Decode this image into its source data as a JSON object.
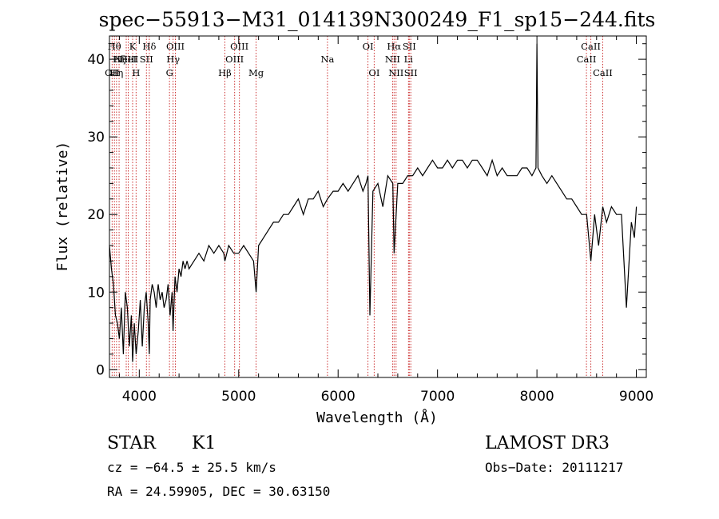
{
  "chart_data": {
    "type": "line",
    "title": "spec−55913−M31_014139N300249_F1_sp15−244.fits",
    "xlabel": "Wavelength (Å)",
    "ylabel": "Flux (relative)",
    "xlim": [
      3700,
      9100
    ],
    "ylim": [
      -1,
      43
    ],
    "x_ticks": [
      {
        "value": 4000,
        "label": "4000"
      },
      {
        "value": 5000,
        "label": "5000"
      },
      {
        "value": 6000,
        "label": "6000"
      },
      {
        "value": 7000,
        "label": "7000"
      },
      {
        "value": 8000,
        "label": "8000"
      },
      {
        "value": 9000,
        "label": "9000"
      }
    ],
    "y_ticks": [
      {
        "value": 0,
        "label": "0"
      },
      {
        "value": 10,
        "label": "10"
      },
      {
        "value": 20,
        "label": "20"
      },
      {
        "value": 30,
        "label": "30"
      },
      {
        "value": 40,
        "label": "40"
      }
    ],
    "grid": false,
    "series": [
      {
        "color": "#000000",
        "x": [
          3700,
          3720,
          3740,
          3760,
          3780,
          3800,
          3820,
          3840,
          3860,
          3880,
          3900,
          3920,
          3933,
          3950,
          3968,
          3990,
          4010,
          4030,
          4050,
          4070,
          4090,
          4101,
          4110,
          4130,
          4150,
          4170,
          4190,
          4210,
          4230,
          4250,
          4270,
          4290,
          4310,
          4330,
          4340,
          4360,
          4380,
          4400,
          4420,
          4440,
          4460,
          4480,
          4500,
          4550,
          4600,
          4650,
          4700,
          4750,
          4800,
          4850,
          4861,
          4900,
          4950,
          5000,
          5050,
          5100,
          5150,
          5175,
          5200,
          5250,
          5300,
          5350,
          5400,
          5450,
          5500,
          5550,
          5600,
          5650,
          5700,
          5750,
          5800,
          5850,
          5893,
          5950,
          6000,
          6050,
          6100,
          6150,
          6200,
          6250,
          6280,
          6300,
          6320,
          6350,
          6400,
          6450,
          6500,
          6550,
          6563,
          6600,
          6650,
          6700,
          6750,
          6800,
          6850,
          6900,
          6950,
          7000,
          7050,
          7100,
          7150,
          7200,
          7250,
          7300,
          7350,
          7400,
          7450,
          7500,
          7550,
          7600,
          7650,
          7700,
          7750,
          7800,
          7850,
          7900,
          7950,
          7990,
          8000,
          8010,
          8050,
          8100,
          8150,
          8200,
          8250,
          8300,
          8350,
          8400,
          8450,
          8500,
          8542,
          8580,
          8620,
          8662,
          8700,
          8750,
          8800,
          8850,
          8900,
          8950,
          8980,
          9000
        ],
        "y": [
          16,
          13,
          11,
          7,
          6,
          4,
          8,
          2,
          10,
          8,
          3,
          7,
          1,
          6,
          2,
          5,
          9,
          3,
          8,
          10,
          6,
          2,
          9,
          11,
          10,
          8,
          11,
          9,
          10,
          8,
          9,
          11,
          7,
          10,
          5,
          12,
          10,
          13,
          12,
          14,
          13,
          14,
          13,
          14,
          15,
          14,
          16,
          15,
          16,
          15,
          14,
          16,
          15,
          15,
          16,
          15,
          14,
          10,
          16,
          17,
          18,
          19,
          19,
          20,
          20,
          21,
          22,
          20,
          22,
          22,
          23,
          21,
          22,
          23,
          23,
          24,
          23,
          24,
          25,
          23,
          24,
          25,
          7,
          23,
          24,
          21,
          25,
          24,
          15,
          24,
          24,
          25,
          25,
          26,
          25,
          26,
          27,
          26,
          26,
          27,
          26,
          27,
          27,
          26,
          27,
          27,
          26,
          25,
          27,
          25,
          26,
          25,
          25,
          25,
          26,
          26,
          25,
          26,
          42,
          26,
          25,
          24,
          25,
          24,
          23,
          22,
          22,
          21,
          20,
          20,
          14,
          20,
          16,
          21,
          19,
          21,
          20,
          20,
          8,
          19,
          17,
          21
        ]
      }
    ],
    "spectral_lines": [
      {
        "wavelength": 3727,
        "label": "OII",
        "row": 3
      },
      {
        "wavelength": 3750,
        "label": "Hθ",
        "row": 1
      },
      {
        "wavelength": 3771,
        "label": "Hη",
        "row": 3
      },
      {
        "wavelength": 3797,
        "label": "Hζ",
        "row": 2
      },
      {
        "wavelength": 3869,
        "label": "NeIII",
        "row": 2
      },
      {
        "wavelength": 3889,
        "label": "HeI",
        "row": 2
      },
      {
        "wavelength": 3933,
        "label": "K",
        "row": 1
      },
      {
        "wavelength": 3968,
        "label": "H",
        "row": 3
      },
      {
        "wavelength": 4072,
        "label": "SII",
        "row": 2
      },
      {
        "wavelength": 4101,
        "label": "Hδ",
        "row": 1
      },
      {
        "wavelength": 4304,
        "label": "G",
        "row": 3
      },
      {
        "wavelength": 4340,
        "label": "Hγ",
        "row": 2
      },
      {
        "wavelength": 4363,
        "label": "OIII",
        "row": 1
      },
      {
        "wavelength": 4861,
        "label": "Hβ",
        "row": 3
      },
      {
        "wavelength": 4959,
        "label": "OIII",
        "row": 2
      },
      {
        "wavelength": 5007,
        "label": "OIII",
        "row": 1
      },
      {
        "wavelength": 5175,
        "label": "Mg",
        "row": 3
      },
      {
        "wavelength": 5893,
        "label": "Na",
        "row": 2
      },
      {
        "wavelength": 6300,
        "label": "OI",
        "row": 1
      },
      {
        "wavelength": 6363,
        "label": "OI",
        "row": 3
      },
      {
        "wavelength": 6548,
        "label": "NII",
        "row": 2
      },
      {
        "wavelength": 6563,
        "label": "Hα",
        "row": 1
      },
      {
        "wavelength": 6583,
        "label": "NII",
        "row": 3
      },
      {
        "wavelength": 6708,
        "label": "Li",
        "row": 2
      },
      {
        "wavelength": 6716,
        "label": "SII",
        "row": 1
      },
      {
        "wavelength": 6731,
        "label": "SII",
        "row": 3
      },
      {
        "wavelength": 8498,
        "label": "CaII",
        "row": 2
      },
      {
        "wavelength": 8542,
        "label": "CaII",
        "row": 1
      },
      {
        "wavelength": 8662,
        "label": "CaII",
        "row": 3
      }
    ]
  },
  "info": {
    "object_class": "STAR",
    "subclass": "K1",
    "survey": "LAMOST DR3",
    "redshift_line": "cz = −64.5 ± 25.5 km/s",
    "obs_date_line": "Obs−Date: 20111217",
    "coord_line": "RA =  24.59905, DEC =  30.63150"
  },
  "colors": {
    "spectrum": "#000000",
    "line_marker": "#cc3333",
    "axes": "#000000",
    "background": "#ffffff"
  }
}
